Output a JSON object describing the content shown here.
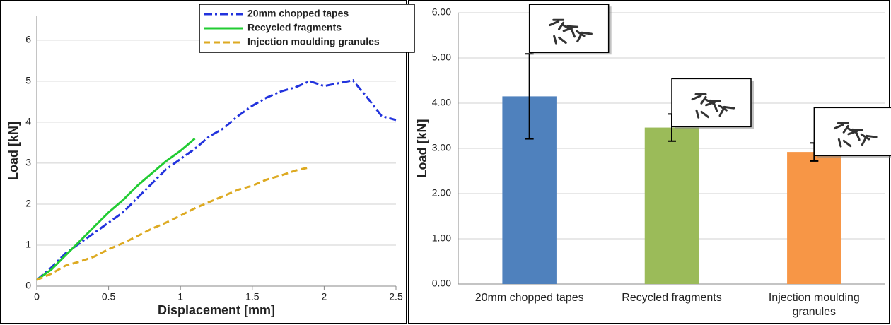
{
  "chart_data": [
    {
      "type": "line",
      "x_label": "Displacement [mm]",
      "y_label": "Load [kN]",
      "x": [
        0,
        0.1,
        0.2,
        0.3,
        0.4,
        0.5,
        0.6,
        0.7,
        0.8,
        0.9,
        1.0,
        1.1,
        1.2,
        1.3,
        1.4,
        1.5,
        1.6,
        1.7,
        1.8,
        1.9,
        2.0,
        2.1,
        2.2,
        2.3,
        2.4,
        2.5
      ],
      "series": [
        {
          "name": "20mm chopped tapes",
          "color": "#2233dd",
          "values": [
            0.15,
            0.45,
            0.8,
            1.05,
            1.3,
            1.55,
            1.8,
            2.15,
            2.5,
            2.85,
            3.1,
            3.35,
            3.65,
            3.85,
            4.15,
            4.4,
            4.6,
            4.75,
            4.85,
            5.0,
            4.88,
            4.95,
            5.02,
            4.6,
            4.15,
            4.05
          ]
        },
        {
          "name": "Recycled fragments",
          "color": "#22cc33",
          "values": [
            0.15,
            0.4,
            0.75,
            1.1,
            1.45,
            1.8,
            2.1,
            2.45,
            2.75,
            3.05,
            3.3,
            3.6,
            null,
            null,
            null,
            null,
            null,
            null,
            null,
            null,
            null,
            null,
            null,
            null,
            null,
            null
          ]
        },
        {
          "name": "Injection moulding granules",
          "color": "#ddaa22",
          "values": [
            0.15,
            0.3,
            0.5,
            0.6,
            0.72,
            0.9,
            1.05,
            1.22,
            1.4,
            1.55,
            1.72,
            1.9,
            2.05,
            2.2,
            2.35,
            2.45,
            2.6,
            2.7,
            2.82,
            2.9,
            null,
            null,
            null,
            null,
            null,
            null
          ]
        }
      ],
      "xlim": [
        0,
        2.5
      ],
      "xticks": [
        0,
        0.5,
        1,
        1.5,
        2,
        2.5
      ],
      "ylim": [
        0,
        6.6
      ],
      "yticks": [
        0,
        1,
        2,
        3,
        4,
        5,
        6
      ],
      "grid": true,
      "legend": "upper right"
    },
    {
      "type": "bar",
      "y_label": "Load [kN]",
      "categories": [
        "20mm chopped tapes",
        "Recycled fragments",
        "Injection moulding granules"
      ],
      "values": [
        4.15,
        3.46,
        2.92
      ],
      "errors": [
        0.94,
        0.3,
        0.2
      ],
      "colors": [
        "#4f81bd",
        "#9bbb59",
        "#f79646"
      ],
      "ylim": [
        0,
        6
      ],
      "yticks": [
        {
          "value": 0,
          "label": "0.00"
        },
        {
          "value": 1,
          "label": "1.00"
        },
        {
          "value": 2,
          "label": "2.00"
        },
        {
          "value": 3,
          "label": "3.00"
        },
        {
          "value": 4,
          "label": "4.00"
        },
        {
          "value": 5,
          "label": "5.00"
        },
        {
          "value": 6,
          "label": "6.00"
        }
      ],
      "grid": true
    }
  ]
}
